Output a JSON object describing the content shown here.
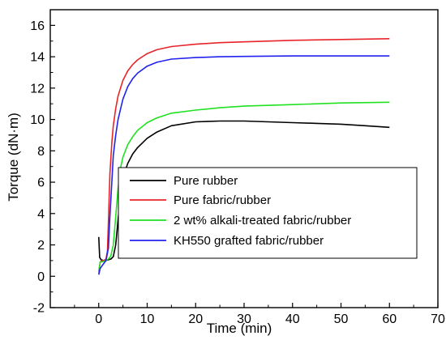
{
  "chart_data": {
    "type": "line",
    "xlabel": "Time (min)",
    "ylabel": "Torque (dN·m)",
    "xlim": [
      -10,
      70
    ],
    "ylim": [
      -2,
      17
    ],
    "x_ticks": [
      "0",
      "10",
      "20",
      "30",
      "40",
      "50",
      "60",
      "70"
    ],
    "y_ticks": [
      "-2",
      "0",
      "2",
      "4",
      "6",
      "8",
      "10",
      "12",
      "14",
      "16"
    ],
    "legend_position": "center-right",
    "series": [
      {
        "name": "Pure rubber",
        "color": "#000000",
        "points": [
          [
            0,
            2.5
          ],
          [
            0.2,
            1.2
          ],
          [
            0.5,
            1.05
          ],
          [
            1,
            1.0
          ],
          [
            1.5,
            1.0
          ],
          [
            2,
            1.05
          ],
          [
            2.5,
            1.1
          ],
          [
            3,
            1.25
          ],
          [
            3.5,
            2.0
          ],
          [
            4,
            3.6
          ],
          [
            4.5,
            5.2
          ],
          [
            5,
            6.3
          ],
          [
            6,
            7.2
          ],
          [
            7,
            7.8
          ],
          [
            8,
            8.2
          ],
          [
            10,
            8.8
          ],
          [
            12,
            9.2
          ],
          [
            15,
            9.6
          ],
          [
            20,
            9.85
          ],
          [
            25,
            9.9
          ],
          [
            30,
            9.9
          ],
          [
            35,
            9.85
          ],
          [
            40,
            9.8
          ],
          [
            45,
            9.75
          ],
          [
            50,
            9.7
          ],
          [
            55,
            9.6
          ],
          [
            60,
            9.5
          ]
        ]
      },
      {
        "name": "Pure fabric/rubber",
        "color": "#e8242a",
        "points": [
          [
            0,
            0.3
          ],
          [
            0.3,
            0.9
          ],
          [
            0.7,
            1.0
          ],
          [
            1,
            1.0
          ],
          [
            1.5,
            1.1
          ],
          [
            1.8,
            1.6
          ],
          [
            2,
            3.5
          ],
          [
            2.3,
            6.5
          ],
          [
            2.7,
            8.5
          ],
          [
            3,
            9.6
          ],
          [
            3.5,
            10.7
          ],
          [
            4,
            11.5
          ],
          [
            5,
            12.5
          ],
          [
            6,
            13.1
          ],
          [
            7,
            13.5
          ],
          [
            8,
            13.8
          ],
          [
            10,
            14.2
          ],
          [
            12,
            14.45
          ],
          [
            15,
            14.65
          ],
          [
            20,
            14.8
          ],
          [
            25,
            14.9
          ],
          [
            30,
            14.95
          ],
          [
            40,
            15.05
          ],
          [
            50,
            15.1
          ],
          [
            60,
            15.15
          ]
        ]
      },
      {
        "name": "2 wt% alkali-treated fabric/rubber",
        "color": "#22e022",
        "points": [
          [
            0,
            0.2
          ],
          [
            0.3,
            0.9
          ],
          [
            1,
            0.95
          ],
          [
            1.5,
            1.0
          ],
          [
            2,
            1.1
          ],
          [
            2.5,
            1.3
          ],
          [
            3,
            2.0
          ],
          [
            3.5,
            3.8
          ],
          [
            4,
            5.6
          ],
          [
            4.5,
            6.9
          ],
          [
            5,
            7.6
          ],
          [
            6,
            8.4
          ],
          [
            7,
            8.9
          ],
          [
            8,
            9.3
          ],
          [
            10,
            9.8
          ],
          [
            12,
            10.1
          ],
          [
            15,
            10.4
          ],
          [
            20,
            10.6
          ],
          [
            25,
            10.75
          ],
          [
            30,
            10.85
          ],
          [
            40,
            10.95
          ],
          [
            50,
            11.05
          ],
          [
            60,
            11.1
          ]
        ]
      },
      {
        "name": "KH550 grafted fabric/rubber",
        "color": "#2222ee",
        "points": [
          [
            0,
            0.1
          ],
          [
            0.3,
            0.5
          ],
          [
            1,
            0.8
          ],
          [
            1.5,
            1.0
          ],
          [
            2,
            1.8
          ],
          [
            2.3,
            3.8
          ],
          [
            2.7,
            6.0
          ],
          [
            3,
            7.7
          ],
          [
            3.5,
            9.0
          ],
          [
            4,
            10.0
          ],
          [
            5,
            11.3
          ],
          [
            6,
            12.1
          ],
          [
            7,
            12.6
          ],
          [
            8,
            12.95
          ],
          [
            10,
            13.4
          ],
          [
            12,
            13.65
          ],
          [
            15,
            13.85
          ],
          [
            20,
            13.95
          ],
          [
            25,
            14.0
          ],
          [
            30,
            14.02
          ],
          [
            40,
            14.05
          ],
          [
            50,
            14.05
          ],
          [
            60,
            14.05
          ]
        ]
      }
    ]
  }
}
